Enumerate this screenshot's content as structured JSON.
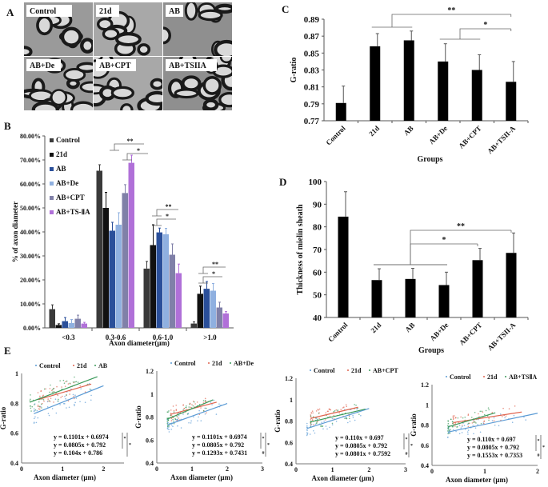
{
  "panel_labels": {
    "a": "A",
    "b": "B",
    "c": "C",
    "d": "D",
    "e": "E"
  },
  "colors": {
    "Control": "#3a3a3a",
    "21d": "#111111",
    "AB": "#2a4f9a",
    "AB+De": "#8fb0e0",
    "AB+CPT": "#8080a8",
    "AB+TS-IIA": "#b070d8",
    "scatter_control": "#5b9bd5",
    "scatter_21d": "#e0644f",
    "scatter_treatment": "#3a9a5a"
  },
  "micrographs": [
    "Control",
    "21d",
    "AB",
    "AB+De",
    "AB+CPT",
    "AB+TSIIA"
  ],
  "chart_data": [
    {
      "id": "B",
      "type": "bar",
      "ylabel": "% of axon diameter",
      "xlabel": "Axon diameter(μm)",
      "categories": [
        "<0.3",
        "0.3-0.6",
        "0.6-1.0",
        ">1.0"
      ],
      "ylim": [
        0,
        80
      ],
      "yticks": [
        "0.00%",
        "10.00%",
        "20.00%",
        "30.00%",
        "40.00%",
        "50.00%",
        "60.00%",
        "70.00%",
        "80.00%"
      ],
      "legend_position": "top-left",
      "series": [
        {
          "name": "Control",
          "values": [
            7.8,
            65.5,
            24.7,
            1.8
          ],
          "errors": [
            1.8,
            2.5,
            3.0,
            0.7
          ]
        },
        {
          "name": "21d",
          "values": [
            1.2,
            50.0,
            34.5,
            14.2
          ],
          "errors": [
            0.5,
            6.5,
            8.5,
            3.2
          ]
        },
        {
          "name": "AB",
          "values": [
            2.8,
            40.5,
            39.8,
            16.3
          ],
          "errors": [
            1.5,
            3.5,
            1.8,
            3.0
          ]
        },
        {
          "name": "AB+De",
          "values": [
            2.0,
            43.0,
            39.0,
            15.5
          ],
          "errors": [
            1.5,
            5.0,
            2.5,
            3.0
          ]
        },
        {
          "name": "AB+CPT",
          "values": [
            3.8,
            56.2,
            30.5,
            8.5
          ],
          "errors": [
            1.5,
            3.5,
            4.5,
            2.2
          ]
        },
        {
          "name": "AB+TS-ⅡA",
          "values": [
            1.8,
            68.8,
            22.8,
            6.0
          ],
          "errors": [
            0.5,
            3.2,
            3.8,
            0.8
          ]
        }
      ],
      "annotations": [
        "**",
        "*",
        "**",
        "*",
        "**",
        "*"
      ]
    },
    {
      "id": "C",
      "type": "bar",
      "ylabel": "G-ratio",
      "xlabel": "Groups",
      "categories": [
        "Control",
        "21d",
        "AB",
        "AB+De",
        "AB+CPT",
        "AB+TSII-A"
      ],
      "values": [
        0.791,
        0.858,
        0.865,
        0.84,
        0.83,
        0.816
      ],
      "errors": [
        0.02,
        0.015,
        0.011,
        0.021,
        0.018,
        0.024
      ],
      "ylim": [
        0.77,
        0.89
      ],
      "yticks": [
        "0.77",
        "0.79",
        "0.81",
        "0.83",
        "0.85",
        "0.87",
        "0.89"
      ],
      "annotations": [
        "**",
        "*"
      ]
    },
    {
      "id": "D",
      "type": "bar",
      "ylabel": "Thickness of mielin sheath",
      "xlabel": "Groups",
      "categories": [
        "Control",
        "21d",
        "AB",
        "AB+De",
        "AB+CPT",
        "AB+TSII-A"
      ],
      "values": [
        84.5,
        56.5,
        57.0,
        54.3,
        65.3,
        68.5
      ],
      "errors": [
        11.0,
        5.0,
        4.7,
        5.7,
        5.2,
        8.8
      ],
      "ylim": [
        40,
        100
      ],
      "yticks": [
        "40",
        "50",
        "60",
        "70",
        "80",
        "90",
        "100"
      ],
      "annotations": [
        "**",
        "*"
      ]
    },
    {
      "id": "E1",
      "type": "scatter",
      "xlabel": "Axon diameter (μm)",
      "ylabel": "G-ratio",
      "xlim": [
        0,
        2.5
      ],
      "ylim": [
        0.4,
        1
      ],
      "xticks": [
        "0",
        "1",
        "2"
      ],
      "yticks": [
        "0.4",
        "0.6",
        "0.8",
        "1"
      ],
      "legend": [
        "Control",
        "21d",
        "AB"
      ],
      "fits": [
        {
          "name": "Control",
          "slope": 0.1101,
          "intercept": 0.6974,
          "x_range": [
            0.3,
            2.0
          ]
        },
        {
          "name": "21d",
          "slope": 0.0805,
          "intercept": 0.792,
          "x_range": [
            0.4,
            1.7
          ]
        },
        {
          "name": "AB",
          "slope": 0.104,
          "intercept": 0.786,
          "x_range": [
            0.2,
            1.85
          ]
        }
      ],
      "equations": [
        "y = 0.1101x + 0.6974",
        "y = 0.0805x + 0.792",
        "y = 0.104x + 0.786"
      ],
      "annotations": [
        "*",
        "*"
      ]
    },
    {
      "id": "E2",
      "type": "scatter",
      "xlabel": "Axon diameter (μm)",
      "ylabel": "G-ratio",
      "xlim": [
        0,
        3
      ],
      "ylim": [
        0.4,
        1.2
      ],
      "xticks": [
        "0",
        "1",
        "2",
        "3"
      ],
      "yticks": [
        "0.4",
        "0.6",
        "0.8",
        "1",
        "1.2"
      ],
      "legend": [
        "Control",
        "21d",
        "AB+De"
      ],
      "fits": [
        {
          "name": "Control",
          "slope": 0.1101,
          "intercept": 0.6974,
          "x_range": [
            0.3,
            2.0
          ]
        },
        {
          "name": "21d",
          "slope": 0.0805,
          "intercept": 0.792,
          "x_range": [
            0.4,
            1.7
          ]
        },
        {
          "name": "AB+De",
          "slope": 0.1293,
          "intercept": 0.7431,
          "x_range": [
            0.3,
            1.6
          ]
        }
      ],
      "equations": [
        "y = 0.1101x + 0.6974",
        "y = 0.0805x + 0.792",
        "y = 0.1293x + 0.7431"
      ],
      "annotations": [
        "*",
        "#",
        "*"
      ]
    },
    {
      "id": "E3",
      "type": "scatter",
      "xlabel": "Axon diameter (μm)",
      "ylabel": "G-ratio",
      "xlim": [
        0,
        3
      ],
      "ylim": [
        0.4,
        1.2
      ],
      "xticks": [
        "0",
        "1",
        "2",
        "3"
      ],
      "yticks": [
        "0.4",
        "0.6",
        "0.8",
        "1",
        "1.2"
      ],
      "legend": [
        "Control",
        "21d",
        "AB+CPT"
      ],
      "fits": [
        {
          "name": "Control",
          "slope": 0.11,
          "intercept": 0.697,
          "x_range": [
            0.3,
            2.0
          ]
        },
        {
          "name": "21d",
          "slope": 0.0805,
          "intercept": 0.792,
          "x_range": [
            0.4,
            1.7
          ]
        },
        {
          "name": "AB+CPT",
          "slope": 0.0801,
          "intercept": 0.7592,
          "x_range": [
            0.4,
            1.9
          ]
        }
      ],
      "equations": [
        "y = 0.110x + 0.697",
        "y = 0.0805x + 0.792",
        "y = 0.0801x + 0.7592"
      ],
      "annotations": [
        "*",
        "#",
        "*"
      ]
    },
    {
      "id": "E4",
      "type": "scatter",
      "xlabel": "Axon diameter (μm)",
      "ylabel": "G-ratio",
      "xlim": [
        0,
        2
      ],
      "ylim": [
        0.4,
        1.2
      ],
      "xticks": [
        "0",
        "1",
        "2"
      ],
      "yticks": [
        "0.4",
        "0.6",
        "0.8",
        "1",
        "1.2"
      ],
      "legend": [
        "Control",
        "21d",
        "AB+TSⅡA"
      ],
      "fits": [
        {
          "name": "Control",
          "slope": 0.11,
          "intercept": 0.697,
          "x_range": [
            0.3,
            2.0
          ]
        },
        {
          "name": "21d",
          "slope": 0.0805,
          "intercept": 0.792,
          "x_range": [
            0.4,
            1.7
          ]
        },
        {
          "name": "AB+TSⅡA",
          "slope": 0.1553,
          "intercept": 0.7353,
          "x_range": [
            0.3,
            1.2
          ]
        }
      ],
      "equations": [
        "y = 0.110x + 0.697",
        "y = 0.0805x + 0.792",
        "y = 0.1553x + 0.7353"
      ],
      "annotations": [
        "*",
        "#",
        "*"
      ]
    }
  ]
}
